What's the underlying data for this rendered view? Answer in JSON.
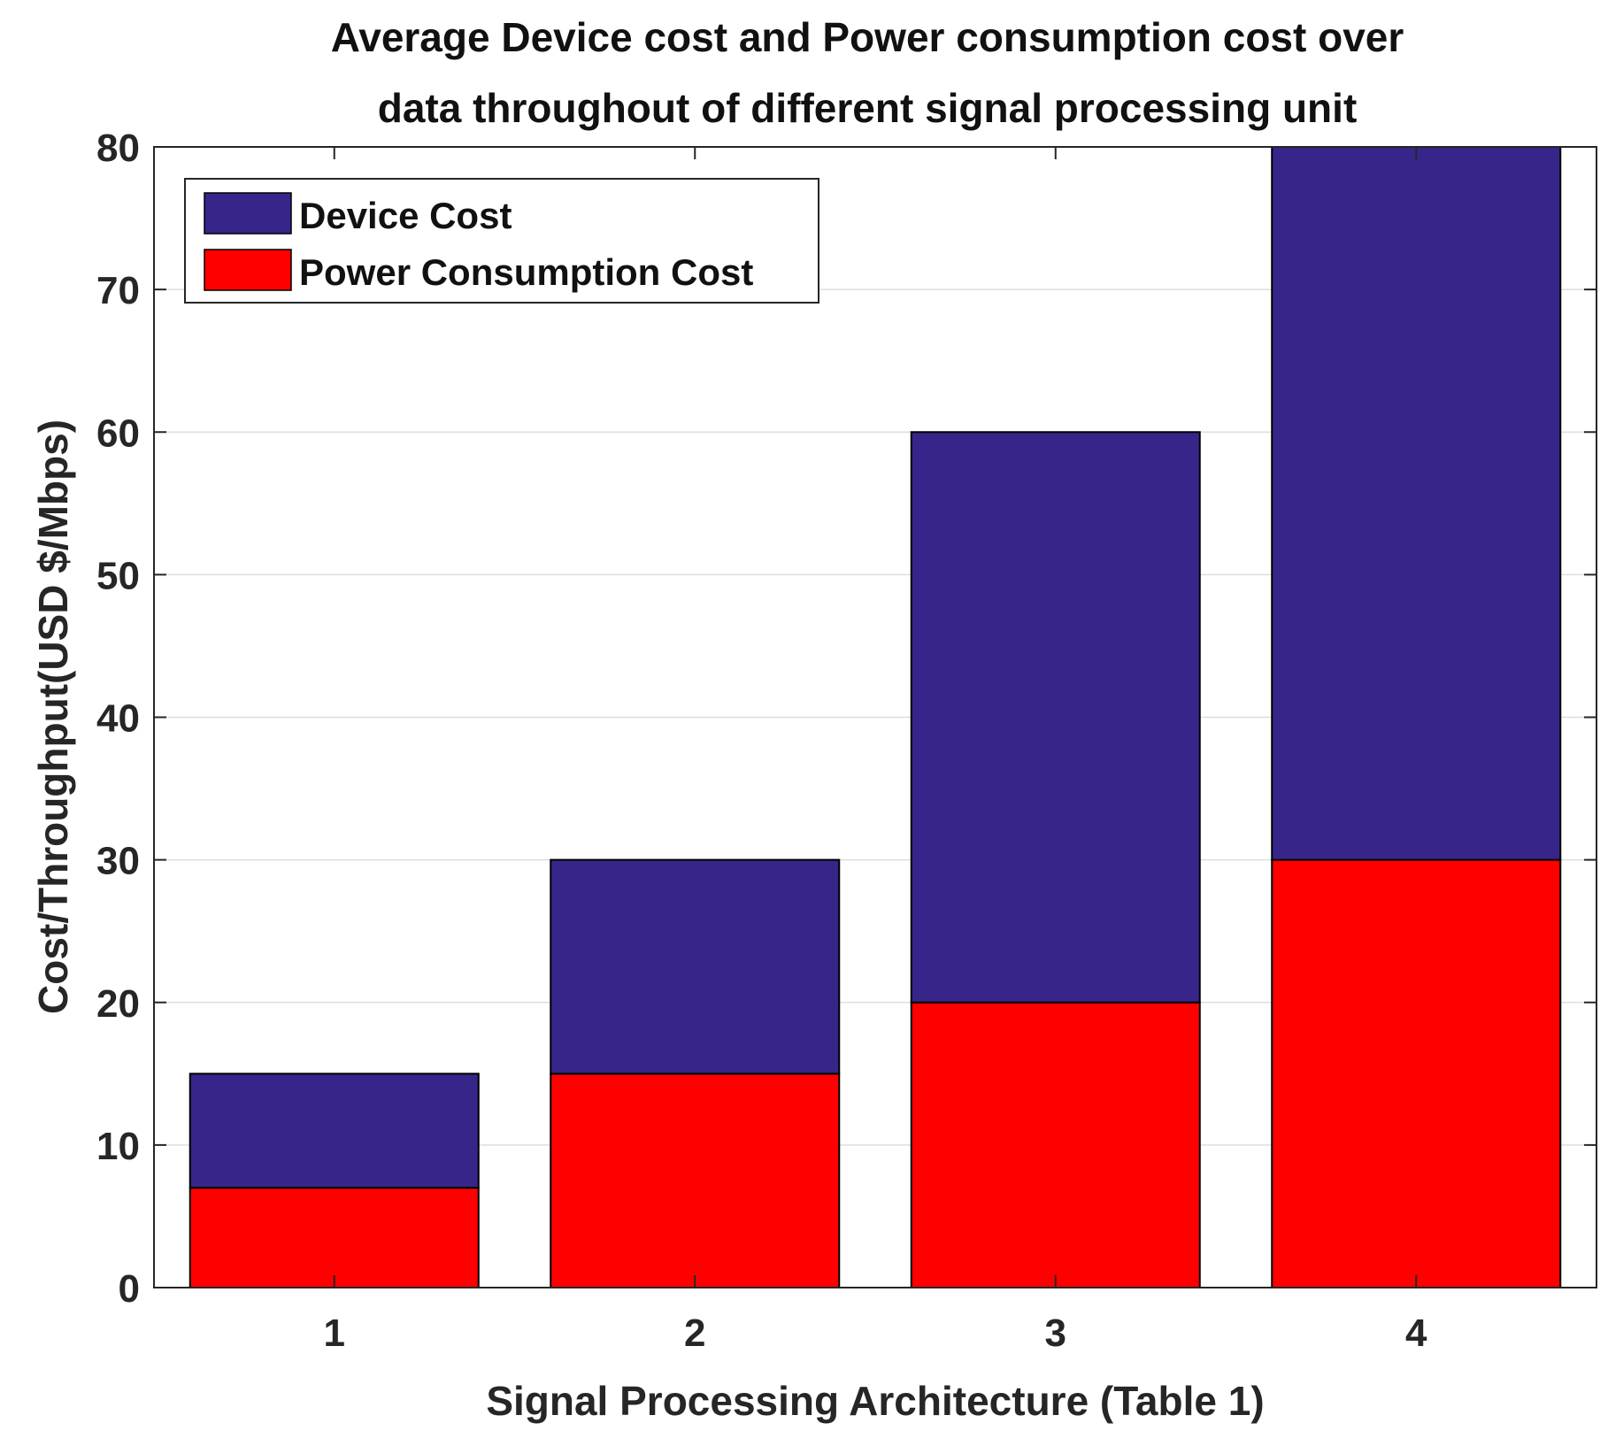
{
  "chart_data": {
    "type": "bar",
    "stacked": true,
    "title_lines": [
      "Average Device cost and Power consumption cost over",
      "data throughout of different signal processing unit"
    ],
    "xlabel": "Signal Processing Architecture (Table 1)",
    "ylabel": "Cost/Throughput(USD $/Mbps)",
    "categories": [
      "1",
      "2",
      "3",
      "4"
    ],
    "ylim": [
      0,
      80
    ],
    "yticks": [
      0,
      10,
      20,
      30,
      40,
      50,
      60,
      70,
      80
    ],
    "grid": true,
    "legend_position": "top-left",
    "series": [
      {
        "name": "Power Consumption Cost",
        "values": [
          7,
          15,
          20,
          30
        ],
        "color": "#ff0000"
      },
      {
        "name": "Device Cost",
        "values": [
          8,
          15,
          40,
          50
        ],
        "color": "#372589"
      }
    ],
    "legend": [
      {
        "label": "Device Cost",
        "color": "#372589"
      },
      {
        "label": "Power Consumption Cost",
        "color": "#ff0000"
      }
    ]
  }
}
